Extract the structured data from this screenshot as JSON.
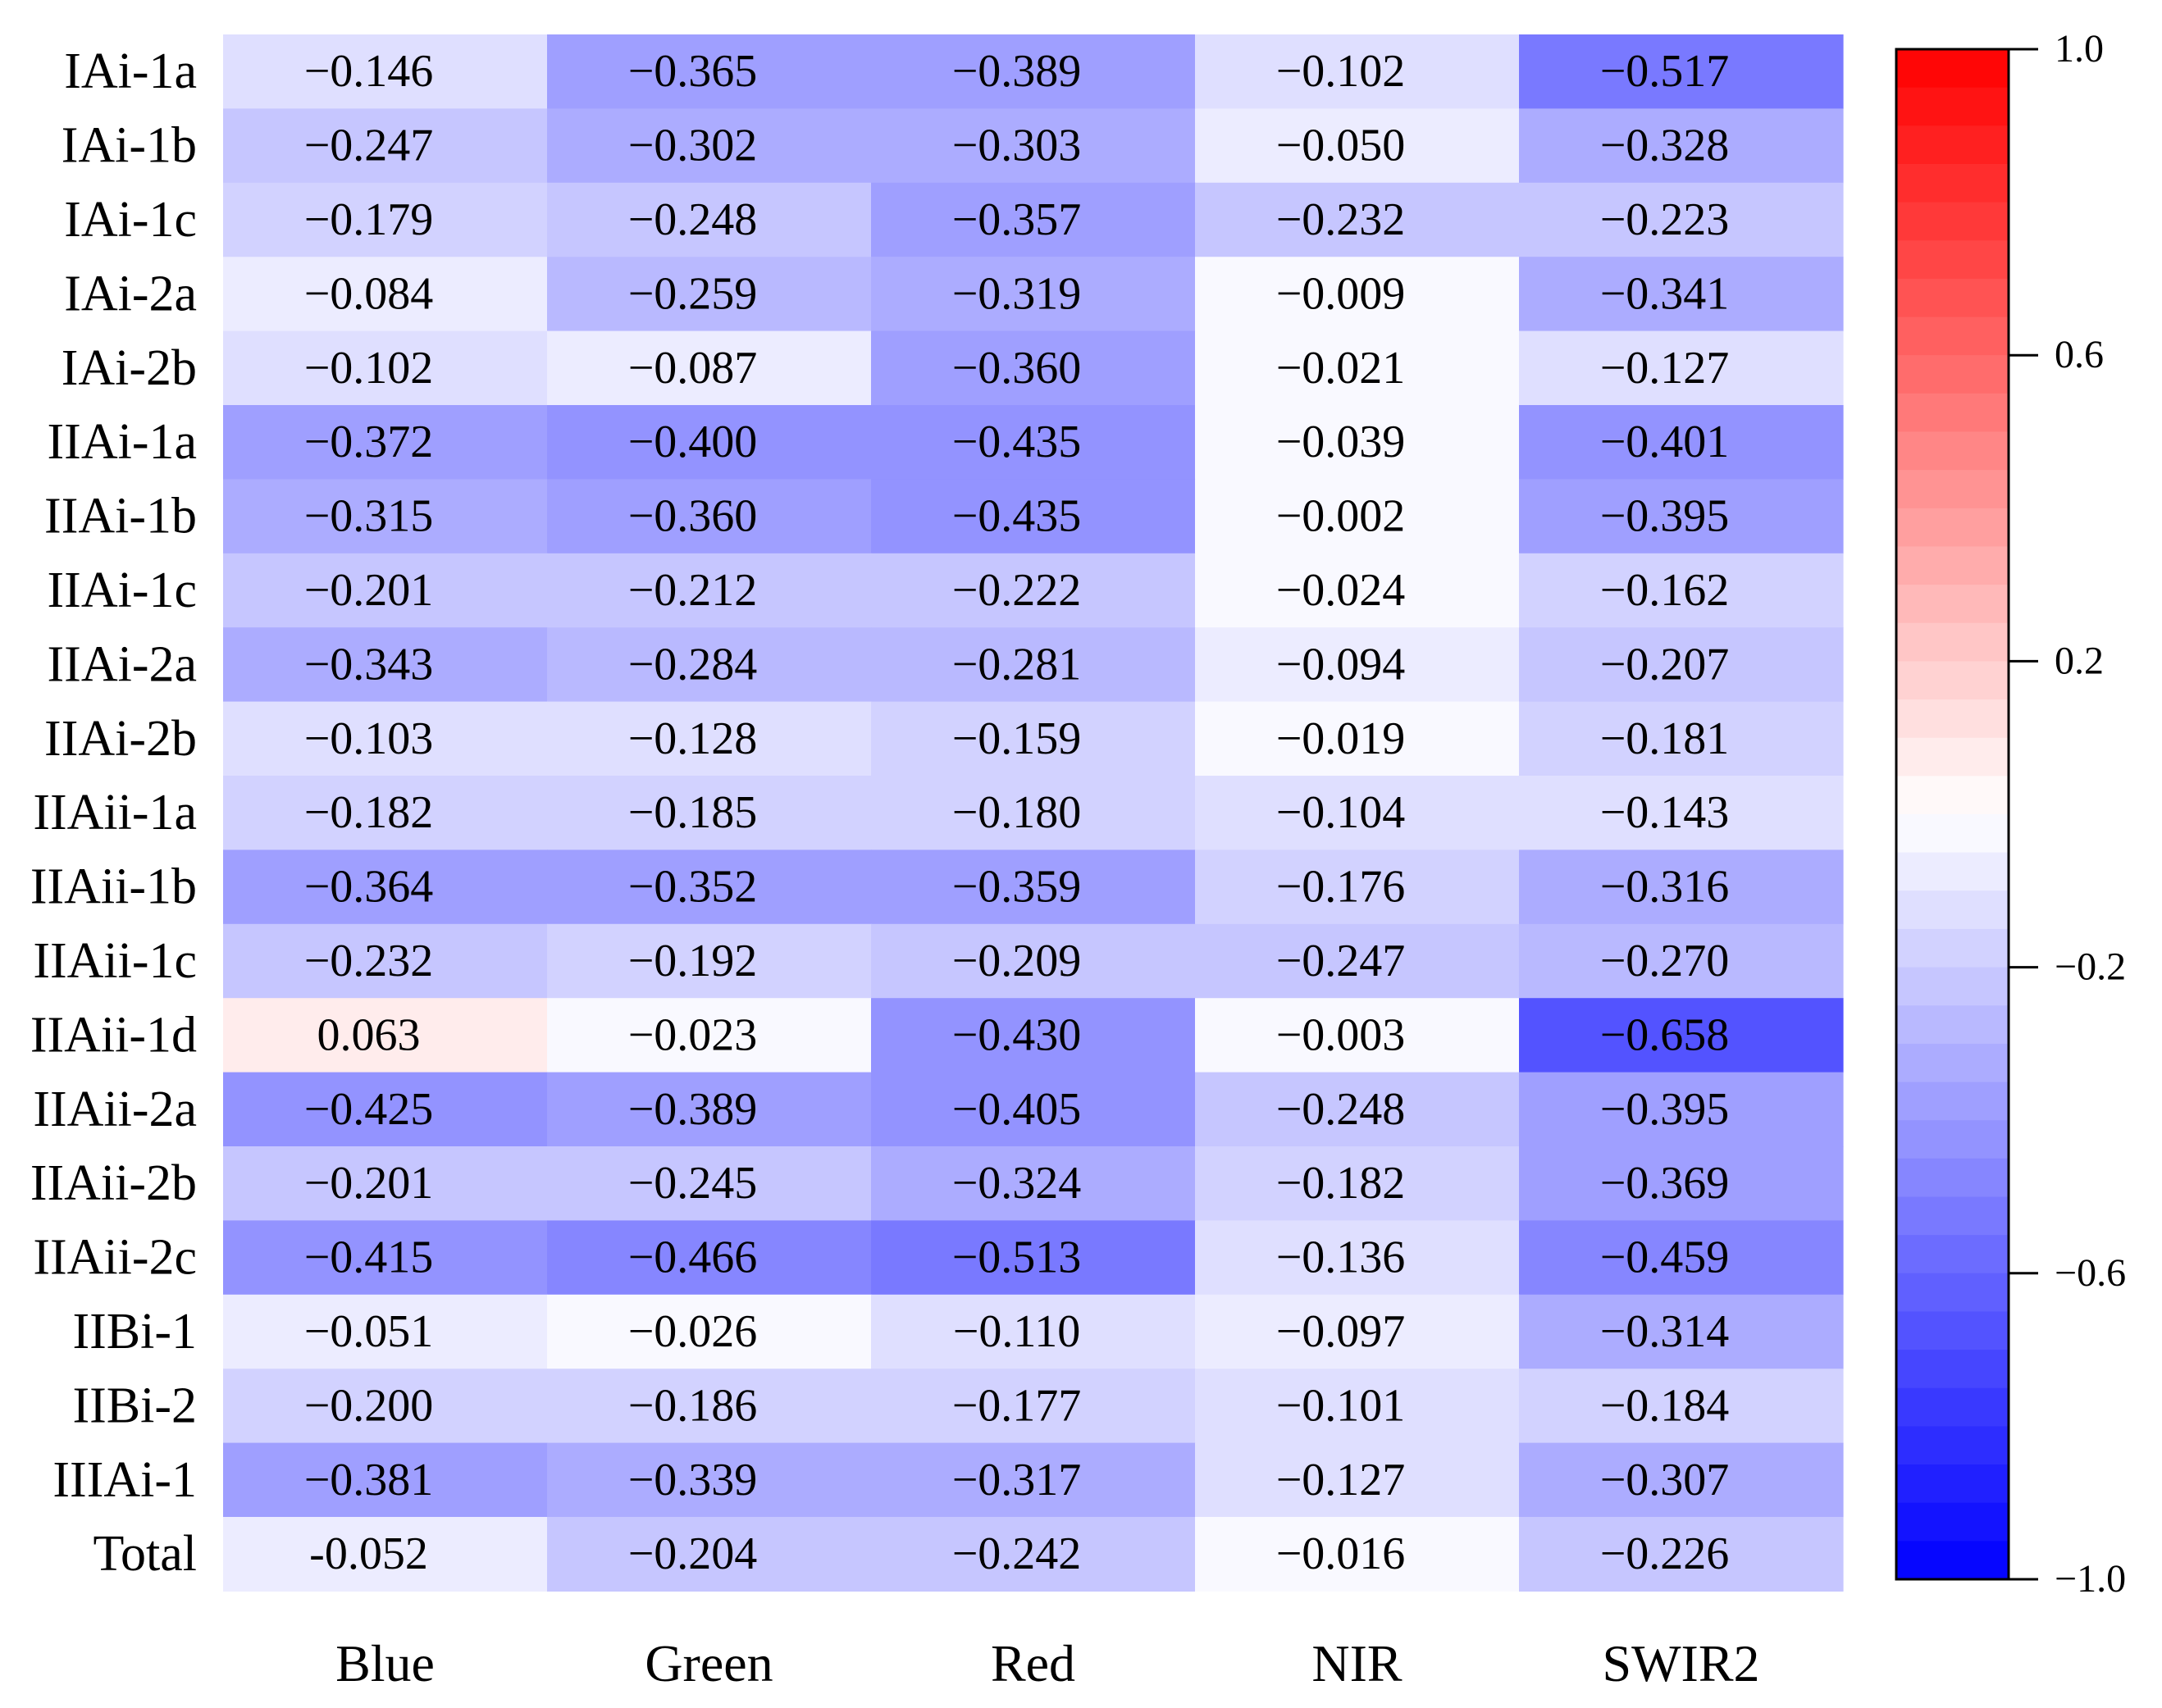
{
  "chart_data": {
    "type": "heatmap",
    "title": "",
    "xlabel": "",
    "ylabel": "",
    "columns": [
      "Blue",
      "Green",
      "Red",
      "NIR",
      "SWIR2"
    ],
    "rows": [
      "IAi-1a",
      "IAi-1b",
      "IAi-1c",
      "IAi-2a",
      "IAi-2b",
      "IIAi-1a",
      "IIAi-1b",
      "IIAi-1c",
      "IIAi-2a",
      "IIAi-2b",
      "IIAii-1a",
      "IIAii-1b",
      "IIAii-1c",
      "IIAii-1d",
      "IIAii-2a",
      "IIAii-2b",
      "IIAii-2c",
      "IIBi-1",
      "IIBi-2",
      "IIIAi-1",
      "Total"
    ],
    "values": [
      [
        -0.146,
        -0.365,
        -0.389,
        -0.102,
        -0.517
      ],
      [
        -0.247,
        -0.302,
        -0.303,
        -0.05,
        -0.328
      ],
      [
        -0.179,
        -0.248,
        -0.357,
        -0.232,
        -0.223
      ],
      [
        -0.084,
        -0.259,
        -0.319,
        -0.009,
        -0.341
      ],
      [
        -0.102,
        -0.087,
        -0.36,
        -0.021,
        -0.127
      ],
      [
        -0.372,
        -0.4,
        -0.435,
        -0.039,
        -0.401
      ],
      [
        -0.315,
        -0.36,
        -0.435,
        -0.002,
        -0.395
      ],
      [
        -0.201,
        -0.212,
        -0.222,
        -0.024,
        -0.162
      ],
      [
        -0.343,
        -0.284,
        -0.281,
        -0.094,
        -0.207
      ],
      [
        -0.103,
        -0.128,
        -0.159,
        -0.019,
        -0.181
      ],
      [
        -0.182,
        -0.185,
        -0.18,
        -0.104,
        -0.143
      ],
      [
        -0.364,
        -0.352,
        -0.359,
        -0.176,
        -0.316
      ],
      [
        -0.232,
        -0.192,
        -0.209,
        -0.247,
        -0.27
      ],
      [
        0.063,
        -0.023,
        -0.43,
        -0.003,
        -0.658
      ],
      [
        -0.425,
        -0.389,
        -0.405,
        -0.248,
        -0.395
      ],
      [
        -0.201,
        -0.245,
        -0.324,
        -0.182,
        -0.369
      ],
      [
        -0.415,
        -0.466,
        -0.513,
        -0.136,
        -0.459
      ],
      [
        -0.051,
        -0.026,
        -0.11,
        -0.097,
        -0.314
      ],
      [
        -0.2,
        -0.186,
        -0.177,
        -0.101,
        -0.184
      ],
      [
        -0.381,
        -0.339,
        -0.317,
        -0.127,
        -0.307
      ],
      [
        -0.052,
        -0.204,
        -0.242,
        -0.016,
        -0.226
      ]
    ],
    "labels": [
      [
        "−0.146",
        "−0.365",
        "−0.389",
        "−0.102",
        "−0.517"
      ],
      [
        "−0.247",
        "−0.302",
        "−0.303",
        "−0.050",
        "−0.328"
      ],
      [
        "−0.179",
        "−0.248",
        "−0.357",
        "−0.232",
        "−0.223"
      ],
      [
        "−0.084",
        "−0.259",
        "−0.319",
        "−0.009",
        "−0.341"
      ],
      [
        "−0.102",
        "−0.087",
        "−0.360",
        "−0.021",
        "−0.127"
      ],
      [
        "−0.372",
        "−0.400",
        "−0.435",
        "−0.039",
        "−0.401"
      ],
      [
        "−0.315",
        "−0.360",
        "−0.435",
        "−0.002",
        "−0.395"
      ],
      [
        "−0.201",
        "−0.212",
        "−0.222",
        "−0.024",
        "−0.162"
      ],
      [
        "−0.343",
        "−0.284",
        "−0.281",
        "−0.094",
        "−0.207"
      ],
      [
        "−0.103",
        "−0.128",
        "−0.159",
        "−0.019",
        "−0.181"
      ],
      [
        "−0.182",
        "−0.185",
        "−0.180",
        "−0.104",
        "−0.143"
      ],
      [
        "−0.364",
        "−0.352",
        "−0.359",
        "−0.176",
        "−0.316"
      ],
      [
        "−0.232",
        "−0.192",
        "−0.209",
        "−0.247",
        "−0.270"
      ],
      [
        "0.063",
        "−0.023",
        "−0.430",
        "−0.003",
        "−0.658"
      ],
      [
        "−0.425",
        "−0.389",
        "−0.405",
        "−0.248",
        "−0.395"
      ],
      [
        "−0.201",
        "−0.245",
        "−0.324",
        "−0.182",
        "−0.369"
      ],
      [
        "−0.415",
        "−0.466",
        "−0.513",
        "−0.136",
        "−0.459"
      ],
      [
        "−0.051",
        "−0.026",
        "−0.110",
        "−0.097",
        "−0.314"
      ],
      [
        "−0.200",
        "−0.186",
        "−0.177",
        "−0.101",
        "−0.184"
      ],
      [
        "−0.381",
        "−0.339",
        "−0.317",
        "−0.127",
        "−0.307"
      ],
      [
        "-0.052",
        "−0.204",
        "−0.242",
        "−0.016",
        "−0.226"
      ]
    ],
    "colorbar": {
      "range": [
        -1.0,
        1.0
      ],
      "levels": 40,
      "low_color": "#0000ff",
      "mid_color": "#ffffff",
      "high_color": "#ff0000",
      "tick_values": [
        1.0,
        0.6,
        0.2,
        -0.2,
        -0.6,
        -1.0
      ],
      "tick_labels": [
        "1.0",
        "0.6",
        "0.2",
        "−0.2",
        "−0.6",
        "−1.0"
      ]
    }
  }
}
